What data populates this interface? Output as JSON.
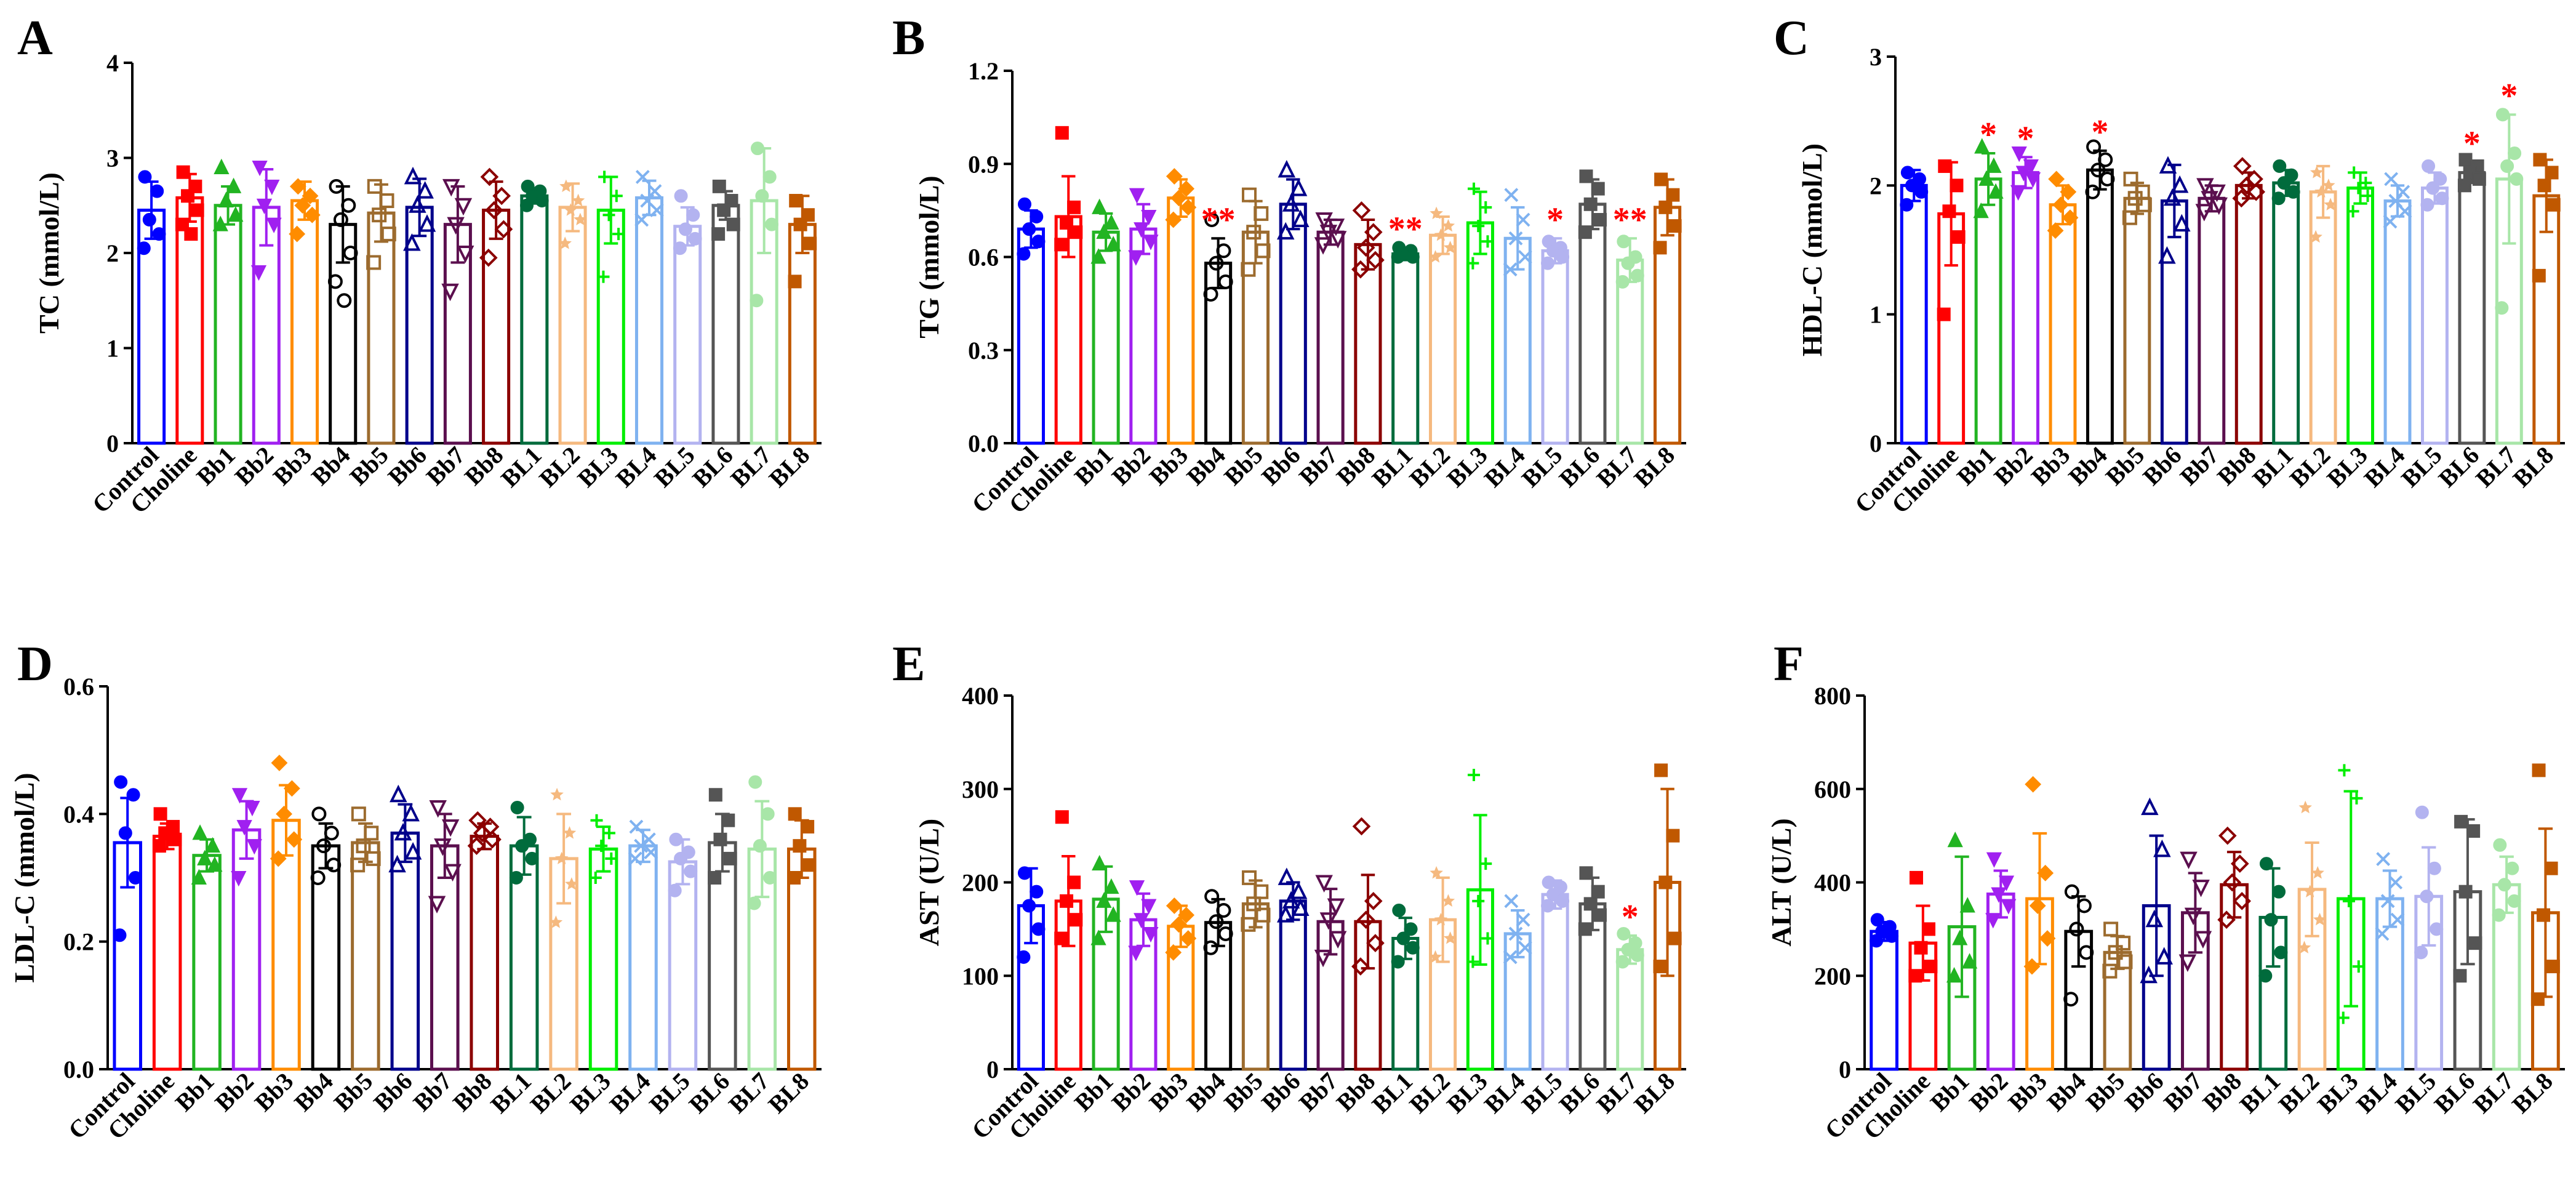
{
  "figure": {
    "groups": [
      "Control",
      "Choline",
      "Bb1",
      "Bb2",
      "Bb3",
      "Bb4",
      "Bb5",
      "Bb6",
      "Bb7",
      "Bb8",
      "BL1",
      "BL2",
      "BL3",
      "BL4",
      "BL5",
      "BL6",
      "BL7",
      "BL8"
    ],
    "group_colors": [
      "#0000ff",
      "#ff0000",
      "#22b422",
      "#a020f0",
      "#ff8c00",
      "#000000",
      "#9c6b2e",
      "#00008b",
      "#5b0f4e",
      "#8b0000",
      "#006b3c",
      "#f5b97f",
      "#00ee00",
      "#7fb2f0",
      "#b3b3f0",
      "#555555",
      "#a8e6a8",
      "#c05800"
    ],
    "group_markers": [
      "circle",
      "square",
      "triangle",
      "tri-down",
      "diamond",
      "circle-open",
      "square-open",
      "triangle-open",
      "tri-down-open",
      "diamond-open",
      "circle",
      "star",
      "plus",
      "cross",
      "circle",
      "square",
      "circle",
      "square"
    ]
  },
  "chart_data": [
    {
      "panel": "A",
      "type": "bar",
      "ylabel": "TC (mmol/L)",
      "ylim": [
        0,
        4
      ],
      "yticks": [
        "0",
        "1",
        "2",
        "3",
        "4"
      ],
      "values": [
        2.45,
        2.58,
        2.5,
        2.48,
        2.55,
        2.3,
        2.42,
        2.48,
        2.3,
        2.45,
        2.6,
        2.48,
        2.45,
        2.58,
        2.28,
        2.5,
        2.55,
        2.3
      ],
      "errors": [
        0.3,
        0.25,
        0.2,
        0.4,
        0.2,
        0.4,
        0.3,
        0.3,
        0.4,
        0.3,
        0.08,
        0.25,
        0.35,
        0.18,
        0.2,
        0.15,
        0.55,
        0.3
      ],
      "points": [
        [
          2.8,
          2.65,
          2.35,
          2.2,
          2.05
        ],
        [
          2.85,
          2.7,
          2.6,
          2.45,
          2.3,
          2.2
        ],
        [
          2.9,
          2.7,
          2.55,
          2.4,
          2.3
        ],
        [
          2.9,
          2.7,
          2.5,
          2.3,
          1.8
        ],
        [
          2.7,
          2.6,
          2.5,
          2.4,
          2.2
        ],
        [
          2.7,
          2.5,
          2.35,
          2.0,
          1.7,
          1.5
        ],
        [
          2.7,
          2.55,
          2.4,
          2.2,
          1.9
        ],
        [
          2.8,
          2.65,
          2.5,
          2.3,
          2.1
        ],
        [
          2.7,
          2.5,
          2.3,
          2.0,
          1.6
        ],
        [
          2.8,
          2.6,
          2.45,
          2.25,
          1.95
        ],
        [
          2.7,
          2.65,
          2.6,
          2.55,
          2.5
        ],
        [
          2.7,
          2.55,
          2.45,
          2.35,
          2.1
        ],
        [
          2.8,
          2.6,
          2.4,
          2.2,
          1.75
        ],
        [
          2.8,
          2.65,
          2.55,
          2.45,
          2.35
        ],
        [
          2.6,
          2.4,
          2.25,
          2.15,
          2.05
        ],
        [
          2.7,
          2.55,
          2.45,
          2.3,
          2.2
        ],
        [
          3.1,
          2.8,
          2.6,
          2.3,
          1.5
        ],
        [
          2.55,
          2.4,
          2.3,
          2.1,
          1.7
        ]
      ],
      "significance": [
        "",
        "",
        "",
        "",
        "",
        "",
        "",
        "",
        "",
        "",
        "",
        "",
        "",
        "",
        "",
        "",
        "",
        ""
      ]
    },
    {
      "panel": "B",
      "type": "bar",
      "ylabel": "TG (mmol/L)",
      "ylim": [
        0,
        1.2
      ],
      "yticks": [
        "0.0",
        "0.3",
        "0.6",
        "0.9",
        "1.2"
      ],
      "values": [
        0.69,
        0.73,
        0.68,
        0.69,
        0.79,
        0.58,
        0.68,
        0.77,
        0.68,
        0.64,
        0.61,
        0.67,
        0.71,
        0.66,
        0.62,
        0.77,
        0.59,
        0.76
      ],
      "errors": [
        0.06,
        0.13,
        0.06,
        0.08,
        0.06,
        0.08,
        0.1,
        0.08,
        0.04,
        0.08,
        0.02,
        0.06,
        0.1,
        0.1,
        0.04,
        0.08,
        0.07,
        0.09
      ],
      "points": [
        [
          0.77,
          0.73,
          0.69,
          0.65,
          0.61
        ],
        [
          1.0,
          0.76,
          0.71,
          0.68,
          0.64
        ],
        [
          0.76,
          0.71,
          0.68,
          0.64,
          0.6
        ],
        [
          0.8,
          0.73,
          0.69,
          0.65,
          0.6
        ],
        [
          0.86,
          0.82,
          0.79,
          0.76,
          0.72
        ],
        [
          0.72,
          0.62,
          0.58,
          0.52,
          0.48
        ],
        [
          0.8,
          0.74,
          0.68,
          0.62,
          0.56
        ],
        [
          0.88,
          0.82,
          0.77,
          0.72,
          0.68
        ],
        [
          0.72,
          0.7,
          0.68,
          0.66,
          0.64
        ],
        [
          0.75,
          0.68,
          0.63,
          0.59,
          0.56
        ],
        [
          0.63,
          0.62,
          0.61,
          0.6,
          0.6
        ],
        [
          0.74,
          0.7,
          0.67,
          0.63,
          0.6
        ],
        [
          0.82,
          0.76,
          0.7,
          0.65,
          0.58
        ],
        [
          0.8,
          0.72,
          0.66,
          0.6,
          0.56
        ],
        [
          0.65,
          0.63,
          0.62,
          0.6,
          0.58
        ],
        [
          0.86,
          0.82,
          0.77,
          0.72,
          0.68
        ],
        [
          0.65,
          0.6,
          0.58,
          0.54,
          0.52
        ],
        [
          0.85,
          0.8,
          0.76,
          0.7,
          0.63
        ]
      ],
      "significance": [
        "",
        "",
        "",
        "",
        "",
        "**",
        "",
        "",
        "",
        "",
        "**",
        "",
        "",
        "",
        "*",
        "",
        "**",
        ""
      ]
    },
    {
      "panel": "C",
      "type": "bar",
      "ylabel": "HDL-C (mmol/L)",
      "ylim": [
        0,
        3
      ],
      "yticks": [
        "0",
        "1",
        "2",
        "3"
      ],
      "values": [
        2.0,
        1.78,
        2.05,
        2.1,
        1.85,
        2.12,
        1.9,
        1.88,
        1.9,
        2.0,
        2.02,
        1.95,
        1.98,
        1.88,
        1.98,
        2.1,
        2.05,
        1.92
      ],
      "errors": [
        0.12,
        0.4,
        0.2,
        0.12,
        0.15,
        0.15,
        0.12,
        0.28,
        0.1,
        0.1,
        0.1,
        0.2,
        0.12,
        0.12,
        0.12,
        0.08,
        0.5,
        0.28
      ],
      "points": [
        [
          2.1,
          2.05,
          2.0,
          1.95,
          1.85
        ],
        [
          2.15,
          2.0,
          1.8,
          1.6,
          1.0
        ],
        [
          2.3,
          2.15,
          2.05,
          1.95,
          1.8
        ],
        [
          2.25,
          2.15,
          2.1,
          2.05,
          1.95
        ],
        [
          2.05,
          1.95,
          1.85,
          1.75,
          1.65
        ],
        [
          2.3,
          2.2,
          2.12,
          2.05,
          1.95
        ],
        [
          2.05,
          1.95,
          1.9,
          1.85,
          1.75
        ],
        [
          2.15,
          2.0,
          1.9,
          1.7,
          1.45
        ],
        [
          2.0,
          1.95,
          1.9,
          1.85,
          1.8
        ],
        [
          2.15,
          2.05,
          2.0,
          1.95,
          1.9
        ],
        [
          2.15,
          2.08,
          2.02,
          1.95,
          1.9
        ],
        [
          2.1,
          2.0,
          1.95,
          1.85,
          1.6
        ],
        [
          2.1,
          2.02,
          1.98,
          1.92,
          1.8
        ],
        [
          2.05,
          1.95,
          1.88,
          1.8,
          1.72
        ],
        [
          2.15,
          2.05,
          1.98,
          1.9,
          1.85
        ],
        [
          2.2,
          2.15,
          2.1,
          2.05,
          2.0
        ],
        [
          2.55,
          2.25,
          2.15,
          2.05,
          1.05
        ],
        [
          2.2,
          2.1,
          2.0,
          1.85,
          1.3
        ]
      ],
      "significance": [
        "",
        "",
        "*",
        "*",
        "",
        "*",
        "",
        "",
        "",
        "",
        "",
        "",
        "",
        "",
        "",
        "*",
        "*",
        ""
      ]
    },
    {
      "panel": "D",
      "type": "bar",
      "ylabel": "LDL-C (mmol/L)",
      "ylim": [
        0,
        0.6
      ],
      "yticks": [
        "0.0",
        "0.2",
        "0.4",
        "0.6"
      ],
      "values": [
        0.355,
        0.365,
        0.335,
        0.375,
        0.39,
        0.35,
        0.355,
        0.37,
        0.35,
        0.365,
        0.35,
        0.33,
        0.345,
        0.35,
        0.325,
        0.355,
        0.345,
        0.345
      ],
      "errors": [
        0.07,
        0.02,
        0.025,
        0.045,
        0.055,
        0.035,
        0.03,
        0.045,
        0.05,
        0.02,
        0.045,
        0.07,
        0.035,
        0.025,
        0.035,
        0.045,
        0.075,
        0.045
      ],
      "points": [
        [
          0.45,
          0.43,
          0.37,
          0.3,
          0.21
        ],
        [
          0.4,
          0.38,
          0.37,
          0.36,
          0.35
        ],
        [
          0.37,
          0.35,
          0.33,
          0.32,
          0.3
        ],
        [
          0.43,
          0.41,
          0.38,
          0.35,
          0.3
        ],
        [
          0.48,
          0.44,
          0.4,
          0.36,
          0.33
        ],
        [
          0.4,
          0.37,
          0.35,
          0.32,
          0.3
        ],
        [
          0.4,
          0.37,
          0.35,
          0.33,
          0.32
        ],
        [
          0.43,
          0.4,
          0.37,
          0.34,
          0.32
        ],
        [
          0.41,
          0.38,
          0.35,
          0.31,
          0.26
        ],
        [
          0.39,
          0.38,
          0.37,
          0.36,
          0.35
        ],
        [
          0.41,
          0.36,
          0.35,
          0.33,
          0.3
        ],
        [
          0.43,
          0.37,
          0.33,
          0.29,
          0.23
        ],
        [
          0.39,
          0.37,
          0.35,
          0.33,
          0.3
        ],
        [
          0.38,
          0.36,
          0.35,
          0.34,
          0.33
        ],
        [
          0.36,
          0.34,
          0.33,
          0.31,
          0.28
        ],
        [
          0.43,
          0.39,
          0.36,
          0.33,
          0.3
        ],
        [
          0.45,
          0.4,
          0.35,
          0.3,
          0.26
        ],
        [
          0.4,
          0.38,
          0.35,
          0.32,
          0.3
        ]
      ],
      "significance": [
        "",
        "",
        "",
        "",
        "",
        "",
        "",
        "",
        "",
        "",
        "",
        "",
        "",
        "",
        "",
        "",
        "",
        ""
      ]
    },
    {
      "panel": "E",
      "type": "bar",
      "ylabel": "AST (U/L)",
      "ylim": [
        0,
        400
      ],
      "yticks": [
        "0",
        "100",
        "200",
        "300",
        "400"
      ],
      "values": [
        175,
        180,
        182,
        160,
        153,
        157,
        177,
        180,
        158,
        158,
        140,
        160,
        192,
        145,
        187,
        177,
        128,
        200
      ],
      "errors": [
        40,
        48,
        35,
        28,
        22,
        25,
        25,
        20,
        35,
        50,
        22,
        45,
        80,
        25,
        15,
        28,
        15,
        100
      ],
      "points": [
        [
          210,
          190,
          175,
          150,
          120
        ],
        [
          270,
          200,
          180,
          160,
          140
        ],
        [
          220,
          195,
          180,
          165,
          140
        ],
        [
          195,
          175,
          160,
          145,
          125
        ],
        [
          175,
          165,
          155,
          140,
          125
        ],
        [
          185,
          170,
          158,
          145,
          130
        ],
        [
          205,
          190,
          177,
          165,
          155
        ],
        [
          205,
          190,
          180,
          172,
          165
        ],
        [
          200,
          175,
          160,
          140,
          120
        ],
        [
          260,
          180,
          160,
          135,
          110
        ],
        [
          170,
          150,
          140,
          130,
          115
        ],
        [
          210,
          180,
          160,
          140,
          120
        ],
        [
          315,
          220,
          180,
          140,
          115
        ],
        [
          180,
          160,
          145,
          130,
          120
        ],
        [
          200,
          195,
          187,
          180,
          175
        ],
        [
          210,
          190,
          177,
          165,
          150
        ],
        [
          145,
          135,
          128,
          122,
          115
        ],
        [
          320,
          250,
          200,
          140,
          110
        ]
      ],
      "significance": [
        "",
        "",
        "",
        "",
        "",
        "",
        "",
        "",
        "",
        "",
        "",
        "",
        "",
        "",
        "",
        "",
        "*",
        ""
      ]
    },
    {
      "panel": "F",
      "type": "bar",
      "ylabel": "ALT (U/L)",
      "ylim": [
        0,
        800
      ],
      "yticks": [
        "0",
        "200",
        "400",
        "600",
        "800"
      ],
      "values": [
        295,
        270,
        305,
        375,
        365,
        295,
        250,
        350,
        335,
        395,
        325,
        385,
        365,
        365,
        370,
        380,
        395,
        335
      ],
      "errors": [
        20,
        80,
        150,
        50,
        140,
        75,
        35,
        150,
        85,
        70,
        105,
        100,
        230,
        60,
        105,
        155,
        60,
        180
      ],
      "points": [
        [
          320,
          305,
          295,
          285,
          275
        ],
        [
          410,
          300,
          260,
          220,
          200
        ],
        [
          490,
          350,
          280,
          230,
          200
        ],
        [
          450,
          400,
          375,
          350,
          320
        ],
        [
          610,
          420,
          350,
          280,
          220
        ],
        [
          380,
          350,
          300,
          250,
          150
        ],
        [
          300,
          270,
          250,
          230,
          210
        ],
        [
          560,
          470,
          320,
          240,
          200
        ],
        [
          450,
          390,
          330,
          280,
          230
        ],
        [
          500,
          440,
          400,
          360,
          320
        ],
        [
          440,
          380,
          320,
          250,
          200
        ],
        [
          560,
          420,
          380,
          320,
          260
        ],
        [
          640,
          580,
          360,
          220,
          110
        ],
        [
          450,
          400,
          360,
          320,
          290
        ],
        [
          550,
          430,
          370,
          300,
          250
        ],
        [
          530,
          510,
          380,
          270,
          200
        ],
        [
          480,
          430,
          395,
          360,
          330
        ],
        [
          640,
          430,
          330,
          220,
          150
        ]
      ],
      "significance": [
        "",
        "",
        "",
        "",
        "",
        "",
        "",
        "",
        "",
        "",
        "",
        "",
        "",
        "",
        "",
        "",
        "",
        ""
      ]
    }
  ]
}
